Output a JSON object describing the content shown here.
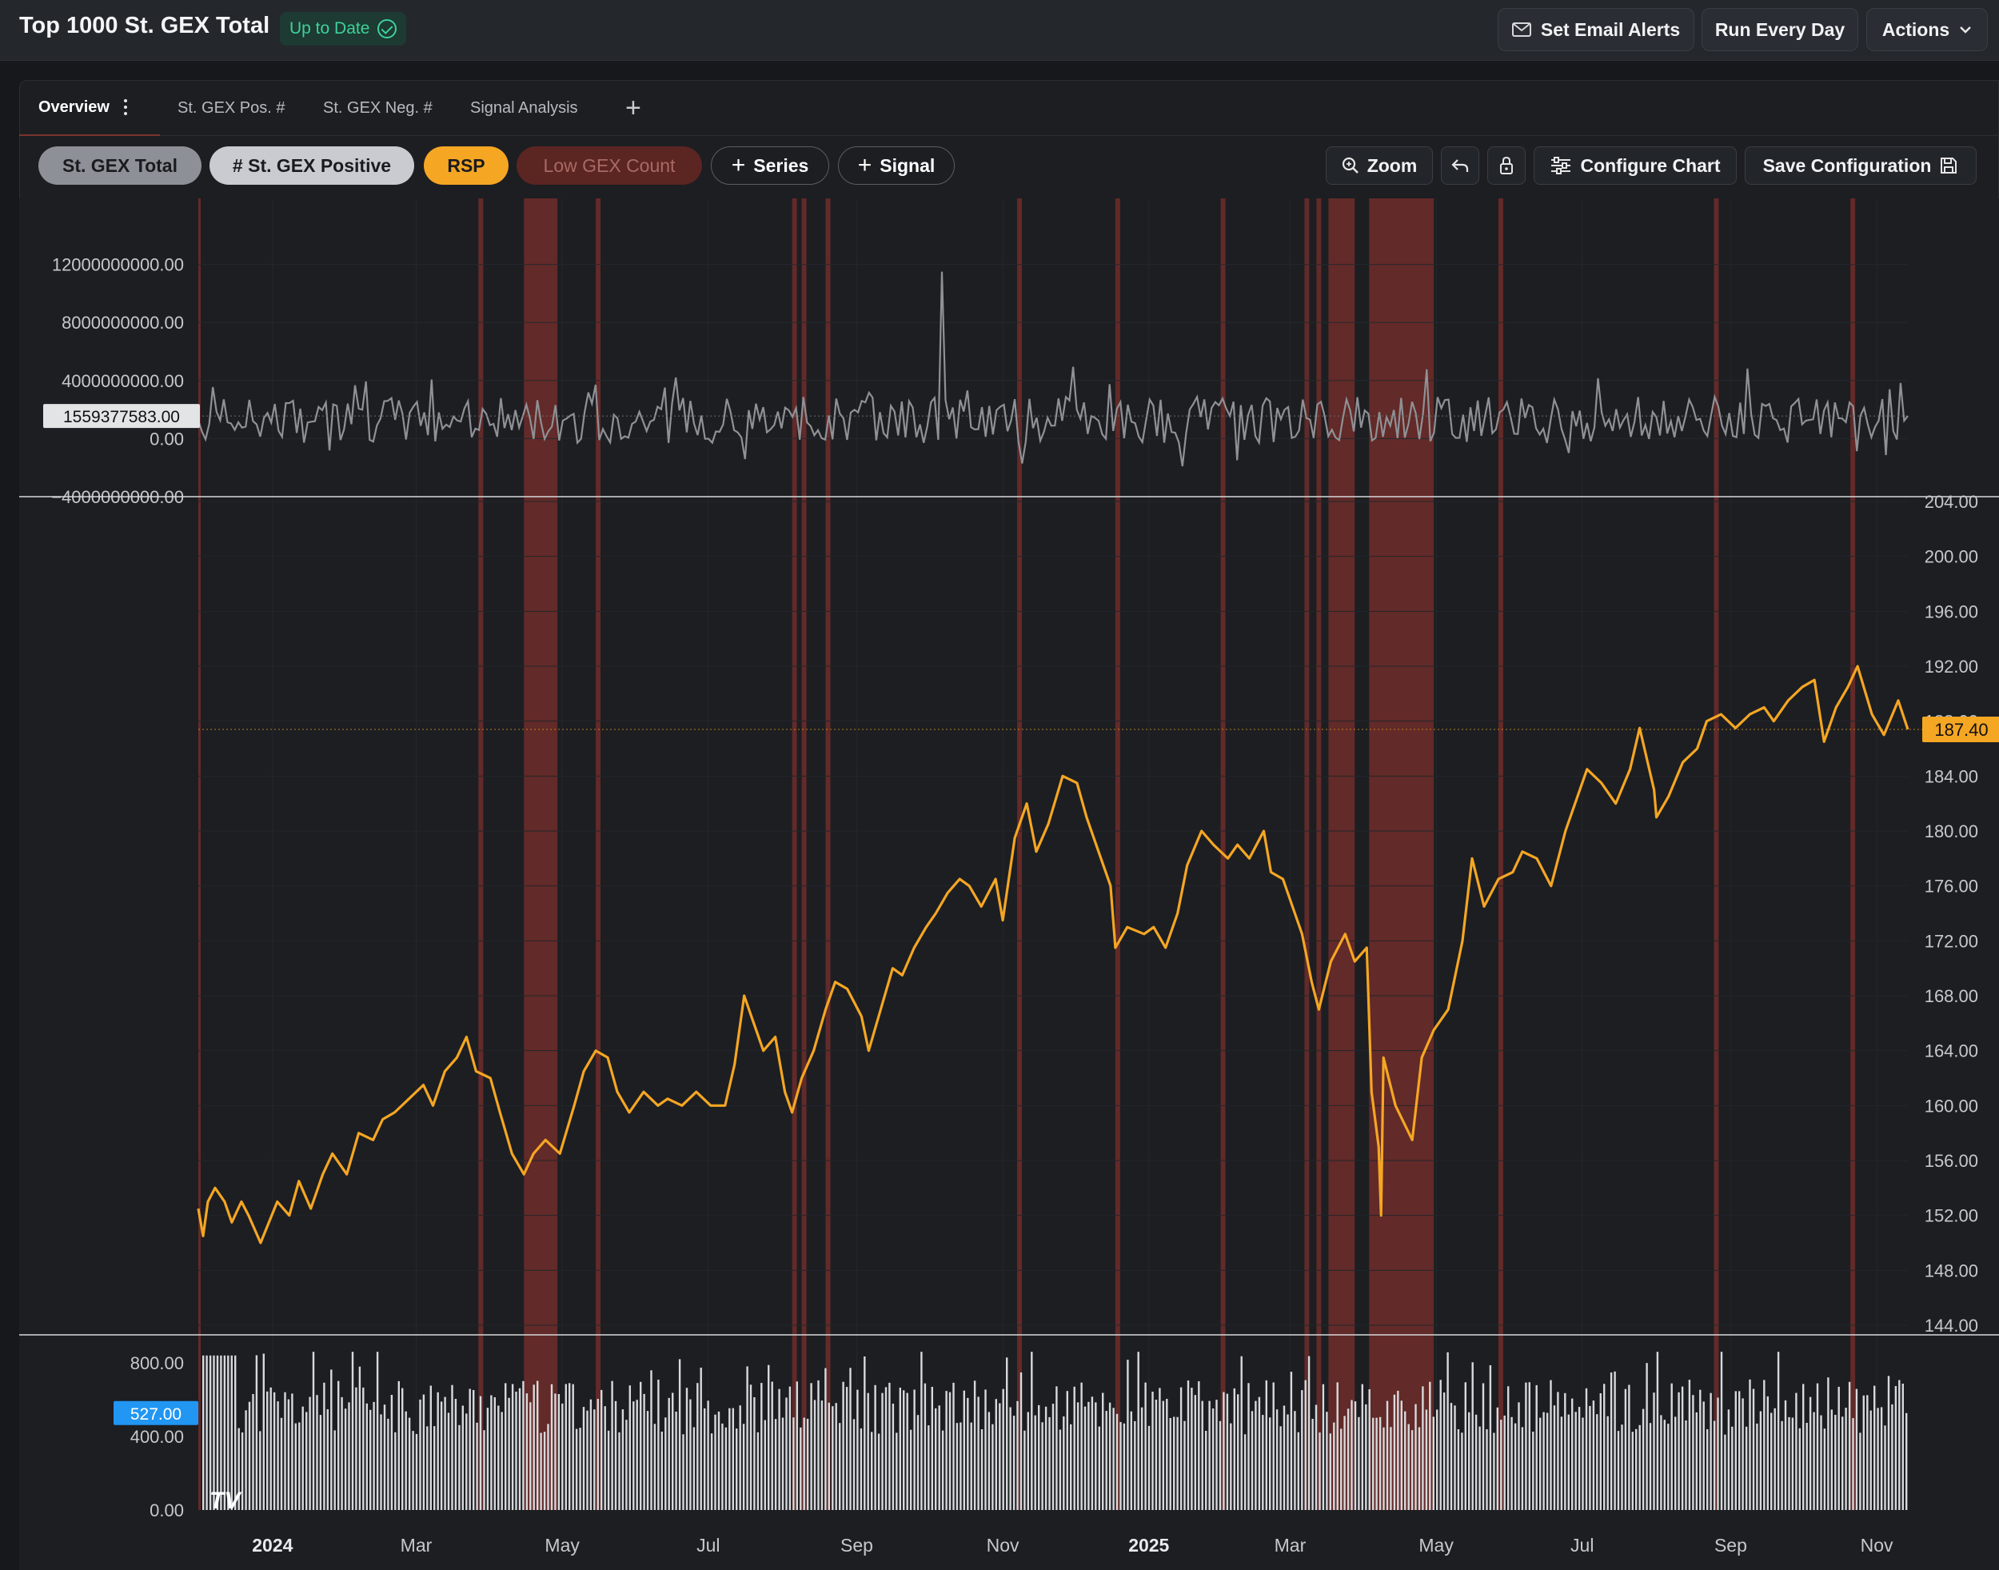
{
  "header": {
    "title": "Top 1000 St. GEX Total",
    "status": "Up to Date",
    "buttons": {
      "email": "Set Email Alerts",
      "run": "Run Every Day",
      "actions": "Actions"
    }
  },
  "tabs": [
    {
      "label": "Overview"
    },
    {
      "label": "St. GEX Pos. #"
    },
    {
      "label": "St. GEX Neg. #"
    },
    {
      "label": "Signal Analysis"
    }
  ],
  "series_pills": [
    {
      "label": "St. GEX Total",
      "color": "#8d9096"
    },
    {
      "label": "# St. GEX Positive",
      "color": "#c9cbd0"
    },
    {
      "label": "RSP",
      "color": "#f5a623"
    },
    {
      "label": "Low GEX Count",
      "color": "#5b2522"
    }
  ],
  "toolbar": {
    "add_series": "Series",
    "add_signal": "Signal",
    "zoom": "Zoom",
    "configure": "Configure Chart",
    "save": "Save Configuration"
  },
  "colors": {
    "gex": "#8f9196",
    "rsp": "#f5a623",
    "signal": "#7a2f2b",
    "count": "#d8d9dc",
    "count_label": "#2196f3"
  },
  "chart_data": [
    {
      "type": "line",
      "name": "St. GEX Total",
      "yticks": [
        "12000000000.00",
        "8000000000.00",
        "4000000000.00",
        "0.00",
        "−4000000000.00"
      ],
      "ytick_values": [
        12000000000,
        8000000000,
        4000000000,
        0,
        -4000000000
      ],
      "ylim": [
        -4000000000,
        16000000000
      ],
      "last_value": 1559377583,
      "last_label": "1559377583.00"
    },
    {
      "type": "line",
      "name": "RSP",
      "yticks": [
        "204.00",
        "200.00",
        "196.00",
        "192.00",
        "188.00",
        "184.00",
        "180.00",
        "176.00",
        "172.00",
        "168.00",
        "164.00",
        "160.00",
        "156.00",
        "152.00",
        "148.00",
        "144.00"
      ],
      "ytick_values": [
        204,
        200,
        196,
        192,
        188,
        184,
        180,
        176,
        172,
        168,
        164,
        160,
        156,
        152,
        148,
        144
      ],
      "ylim": [
        144,
        204
      ],
      "points": [
        [
          "2023-12-01",
          152.5
        ],
        [
          "2023-12-03",
          150.5
        ],
        [
          "2023-12-05",
          153.0
        ],
        [
          "2023-12-08",
          154.0
        ],
        [
          "2023-12-12",
          153.0
        ],
        [
          "2023-12-15",
          151.5
        ],
        [
          "2023-12-19",
          153.0
        ],
        [
          "2023-12-22",
          152.0
        ],
        [
          "2023-12-27",
          150.0
        ],
        [
          "2024-01-03",
          153.0
        ],
        [
          "2024-01-08",
          152.0
        ],
        [
          "2024-01-12",
          154.5
        ],
        [
          "2024-01-17",
          152.5
        ],
        [
          "2024-01-22",
          155.0
        ],
        [
          "2024-01-26",
          156.5
        ],
        [
          "2024-02-01",
          155.0
        ],
        [
          "2024-02-06",
          158.0
        ],
        [
          "2024-02-12",
          157.5
        ],
        [
          "2024-02-16",
          159.0
        ],
        [
          "2024-02-21",
          159.5
        ],
        [
          "2024-02-27",
          160.5
        ],
        [
          "2024-03-04",
          161.5
        ],
        [
          "2024-03-08",
          160.0
        ],
        [
          "2024-03-13",
          162.5
        ],
        [
          "2024-03-18",
          163.5
        ],
        [
          "2024-03-22",
          165.0
        ],
        [
          "2024-03-26",
          162.5
        ],
        [
          "2024-04-01",
          162.0
        ],
        [
          "2024-04-05",
          159.5
        ],
        [
          "2024-04-10",
          156.5
        ],
        [
          "2024-04-15",
          155.0
        ],
        [
          "2024-04-19",
          156.5
        ],
        [
          "2024-04-24",
          157.5
        ],
        [
          "2024-04-30",
          156.5
        ],
        [
          "2024-05-06",
          160.0
        ],
        [
          "2024-05-10",
          162.5
        ],
        [
          "2024-05-15",
          164.0
        ],
        [
          "2024-05-20",
          163.5
        ],
        [
          "2024-05-24",
          161.0
        ],
        [
          "2024-05-29",
          159.5
        ],
        [
          "2024-06-04",
          161.0
        ],
        [
          "2024-06-10",
          160.0
        ],
        [
          "2024-06-14",
          160.5
        ],
        [
          "2024-06-20",
          160.0
        ],
        [
          "2024-06-26",
          161.0
        ],
        [
          "2024-07-02",
          160.0
        ],
        [
          "2024-07-08",
          160.0
        ],
        [
          "2024-07-12",
          163.0
        ],
        [
          "2024-07-16",
          168.0
        ],
        [
          "2024-07-19",
          166.5
        ],
        [
          "2024-07-24",
          164.0
        ],
        [
          "2024-07-29",
          165.0
        ],
        [
          "2024-08-02",
          161.0
        ],
        [
          "2024-08-05",
          159.5
        ],
        [
          "2024-08-09",
          162.0
        ],
        [
          "2024-08-14",
          164.0
        ],
        [
          "2024-08-19",
          167.0
        ],
        [
          "2024-08-23",
          169.0
        ],
        [
          "2024-08-28",
          168.5
        ],
        [
          "2024-09-03",
          166.5
        ],
        [
          "2024-09-06",
          164.0
        ],
        [
          "2024-09-11",
          167.0
        ],
        [
          "2024-09-16",
          170.0
        ],
        [
          "2024-09-20",
          169.5
        ],
        [
          "2024-09-25",
          171.5
        ],
        [
          "2024-09-30",
          173.0
        ],
        [
          "2024-10-04",
          174.0
        ],
        [
          "2024-10-09",
          175.5
        ],
        [
          "2024-10-14",
          176.5
        ],
        [
          "2024-10-18",
          176.0
        ],
        [
          "2024-10-23",
          174.5
        ],
        [
          "2024-10-29",
          176.5
        ],
        [
          "2024-11-01",
          173.5
        ],
        [
          "2024-11-06",
          179.5
        ],
        [
          "2024-11-11",
          182.0
        ],
        [
          "2024-11-15",
          178.5
        ],
        [
          "2024-11-20",
          180.5
        ],
        [
          "2024-11-26",
          184.0
        ],
        [
          "2024-12-02",
          183.5
        ],
        [
          "2024-12-06",
          181.0
        ],
        [
          "2024-12-11",
          178.5
        ],
        [
          "2024-12-16",
          176.0
        ],
        [
          "2024-12-18",
          171.5
        ],
        [
          "2024-12-23",
          173.0
        ],
        [
          "2024-12-30",
          172.5
        ],
        [
          "2025-01-03",
          173.0
        ],
        [
          "2025-01-08",
          171.5
        ],
        [
          "2025-01-13",
          174.0
        ],
        [
          "2025-01-17",
          177.5
        ],
        [
          "2025-01-23",
          180.0
        ],
        [
          "2025-01-28",
          179.0
        ],
        [
          "2025-02-03",
          178.0
        ],
        [
          "2025-02-07",
          179.0
        ],
        [
          "2025-02-12",
          178.0
        ],
        [
          "2025-02-18",
          180.0
        ],
        [
          "2025-02-21",
          177.0
        ],
        [
          "2025-02-26",
          176.5
        ],
        [
          "2025-03-03",
          174.0
        ],
        [
          "2025-03-06",
          172.5
        ],
        [
          "2025-03-10",
          169.0
        ],
        [
          "2025-03-13",
          167.0
        ],
        [
          "2025-03-18",
          170.5
        ],
        [
          "2025-03-24",
          172.5
        ],
        [
          "2025-03-28",
          170.5
        ],
        [
          "2025-04-02",
          171.5
        ],
        [
          "2025-04-04",
          161.0
        ],
        [
          "2025-04-07",
          157.0
        ],
        [
          "2025-04-08",
          152.0
        ],
        [
          "2025-04-09",
          163.5
        ],
        [
          "2025-04-14",
          160.0
        ],
        [
          "2025-04-21",
          157.5
        ],
        [
          "2025-04-25",
          163.5
        ],
        [
          "2025-04-30",
          165.5
        ],
        [
          "2025-05-06",
          167.0
        ],
        [
          "2025-05-12",
          172.0
        ],
        [
          "2025-05-16",
          178.0
        ],
        [
          "2025-05-21",
          174.5
        ],
        [
          "2025-05-27",
          176.5
        ],
        [
          "2025-06-02",
          177.0
        ],
        [
          "2025-06-06",
          178.5
        ],
        [
          "2025-06-12",
          178.0
        ],
        [
          "2025-06-18",
          176.0
        ],
        [
          "2025-06-24",
          180.0
        ],
        [
          "2025-06-30",
          183.0
        ],
        [
          "2025-07-03",
          184.5
        ],
        [
          "2025-07-09",
          183.5
        ],
        [
          "2025-07-15",
          182.0
        ],
        [
          "2025-07-21",
          184.5
        ],
        [
          "2025-07-25",
          187.5
        ],
        [
          "2025-07-31",
          183.0
        ],
        [
          "2025-08-01",
          181.0
        ],
        [
          "2025-08-06",
          182.5
        ],
        [
          "2025-08-12",
          185.0
        ],
        [
          "2025-08-18",
          186.0
        ],
        [
          "2025-08-22",
          188.0
        ],
        [
          "2025-08-28",
          188.5
        ],
        [
          "2025-09-03",
          187.5
        ],
        [
          "2025-09-09",
          188.5
        ],
        [
          "2025-09-15",
          189.0
        ],
        [
          "2025-09-19",
          188.0
        ],
        [
          "2025-09-25",
          189.5
        ],
        [
          "2025-10-01",
          190.5
        ],
        [
          "2025-10-06",
          191.0
        ],
        [
          "2025-10-10",
          186.5
        ],
        [
          "2025-10-15",
          189.0
        ],
        [
          "2025-10-20",
          190.5
        ],
        [
          "2025-10-24",
          192.0
        ],
        [
          "2025-10-30",
          188.5
        ],
        [
          "2025-11-04",
          187.0
        ],
        [
          "2025-11-10",
          189.5
        ],
        [
          "2025-11-14",
          187.4
        ]
      ],
      "last_label": "187.40"
    },
    {
      "type": "bar",
      "name": "# St. GEX Positive",
      "yticks": [
        "800.00",
        "400.00",
        "0.00"
      ],
      "ytick_values": [
        800,
        400,
        0
      ],
      "ylim": [
        0,
        900
      ],
      "last_label": "527.00"
    }
  ],
  "xaxis": {
    "ticks": [
      {
        "label": "2024",
        "date": "2024-01-01",
        "bold": true
      },
      {
        "label": "Mar",
        "date": "2024-03-01"
      },
      {
        "label": "May",
        "date": "2024-05-01"
      },
      {
        "label": "Jul",
        "date": "2024-07-01"
      },
      {
        "label": "Sep",
        "date": "2024-09-01"
      },
      {
        "label": "Nov",
        "date": "2024-11-01"
      },
      {
        "label": "2025",
        "date": "2025-01-01",
        "bold": true
      },
      {
        "label": "Mar",
        "date": "2025-03-01"
      },
      {
        "label": "May",
        "date": "2025-05-01"
      },
      {
        "label": "Jul",
        "date": "2025-07-01"
      },
      {
        "label": "Sep",
        "date": "2025-09-01"
      },
      {
        "label": "Nov",
        "date": "2025-11-01"
      }
    ]
  },
  "signal_bands": [
    [
      "2023-12-01",
      "2023-12-02"
    ],
    [
      "2024-03-27",
      "2024-03-29"
    ],
    [
      "2024-04-15",
      "2024-04-29"
    ],
    [
      "2024-05-15",
      "2024-05-17"
    ],
    [
      "2024-08-05",
      "2024-08-07"
    ],
    [
      "2024-08-09",
      "2024-08-11"
    ],
    [
      "2024-08-19",
      "2024-08-21"
    ],
    [
      "2024-11-07",
      "2024-11-09"
    ],
    [
      "2024-12-18",
      "2024-12-20"
    ],
    [
      "2025-01-31",
      "2025-02-02"
    ],
    [
      "2025-03-07",
      "2025-03-09"
    ],
    [
      "2025-03-12",
      "2025-03-14"
    ],
    [
      "2025-03-17",
      "2025-03-28"
    ],
    [
      "2025-04-03",
      "2025-04-30"
    ],
    [
      "2025-05-27",
      "2025-05-29"
    ],
    [
      "2025-08-25",
      "2025-08-27"
    ],
    [
      "2025-10-21",
      "2025-10-23"
    ]
  ],
  "watermark": "TV"
}
